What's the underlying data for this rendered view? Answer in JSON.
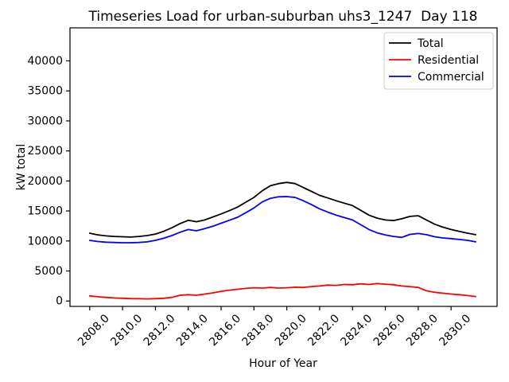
{
  "chart_data": {
    "type": "line",
    "title": "Timeseries Load for urban-suburban uhs3_1247  Day 118",
    "xlabel": "Hour of Year",
    "ylabel": "kW total",
    "x": [
      2808.0,
      2808.5,
      2809.0,
      2809.5,
      2810.0,
      2810.5,
      2811.0,
      2811.5,
      2812.0,
      2812.5,
      2813.0,
      2813.5,
      2814.0,
      2814.5,
      2815.0,
      2815.5,
      2816.0,
      2816.5,
      2817.0,
      2817.5,
      2818.0,
      2818.5,
      2819.0,
      2819.5,
      2820.0,
      2820.5,
      2821.0,
      2821.5,
      2822.0,
      2822.5,
      2823.0,
      2823.5,
      2824.0,
      2824.5,
      2825.0,
      2825.5,
      2826.0,
      2826.5,
      2827.0,
      2827.5,
      2828.0,
      2828.5,
      2829.0,
      2829.5,
      2830.0,
      2830.5,
      2831.0,
      2831.5
    ],
    "series": [
      {
        "name": "Total",
        "color": "#000000",
        "values": [
          11300,
          11000,
          10850,
          10750,
          10700,
          10650,
          10750,
          10900,
          11150,
          11600,
          12200,
          12900,
          13450,
          13200,
          13500,
          14000,
          14500,
          15050,
          15650,
          16450,
          17250,
          18350,
          19200,
          19550,
          19750,
          19550,
          18900,
          18250,
          17600,
          17150,
          16700,
          16300,
          15900,
          15100,
          14300,
          13800,
          13500,
          13400,
          13700,
          14100,
          14200,
          13500,
          12800,
          12300,
          11900,
          11600,
          11300,
          11050
        ]
      },
      {
        "name": "Residential",
        "color": "#ff0000",
        "values": [
          850,
          700,
          600,
          500,
          450,
          400,
          380,
          350,
          380,
          450,
          600,
          950,
          1050,
          950,
          1150,
          1350,
          1600,
          1800,
          1950,
          2100,
          2200,
          2150,
          2250,
          2150,
          2200,
          2300,
          2250,
          2400,
          2500,
          2650,
          2600,
          2750,
          2700,
          2850,
          2750,
          2900,
          2800,
          2700,
          2500,
          2400,
          2250,
          1700,
          1450,
          1300,
          1150,
          1050,
          900,
          750
        ]
      },
      {
        "name": "Commercial",
        "color": "#0000ff",
        "values": [
          10100,
          9900,
          9800,
          9750,
          9700,
          9700,
          9750,
          9850,
          10100,
          10450,
          10900,
          11450,
          11900,
          11700,
          12050,
          12450,
          12950,
          13450,
          13950,
          14700,
          15500,
          16500,
          17100,
          17350,
          17400,
          17250,
          16700,
          16050,
          15350,
          14800,
          14300,
          13900,
          13500,
          12700,
          11900,
          11350,
          11000,
          10750,
          10600,
          11100,
          11250,
          11050,
          10700,
          10500,
          10400,
          10250,
          10100,
          9850
        ]
      }
    ],
    "xlim": [
      2806.8,
      2832.8
    ],
    "ylim": [
      -900,
      45500
    ],
    "xticks": [
      2808,
      2810,
      2812,
      2814,
      2816,
      2818,
      2820,
      2822,
      2824,
      2826,
      2828,
      2830
    ],
    "yticks": [
      0,
      5000,
      10000,
      15000,
      20000,
      25000,
      30000,
      35000,
      40000
    ],
    "xtick_rotation_deg": 45,
    "grid": false,
    "legend": {
      "position": "upper right",
      "entries": [
        "Total",
        "Residential",
        "Commercial"
      ]
    }
  }
}
